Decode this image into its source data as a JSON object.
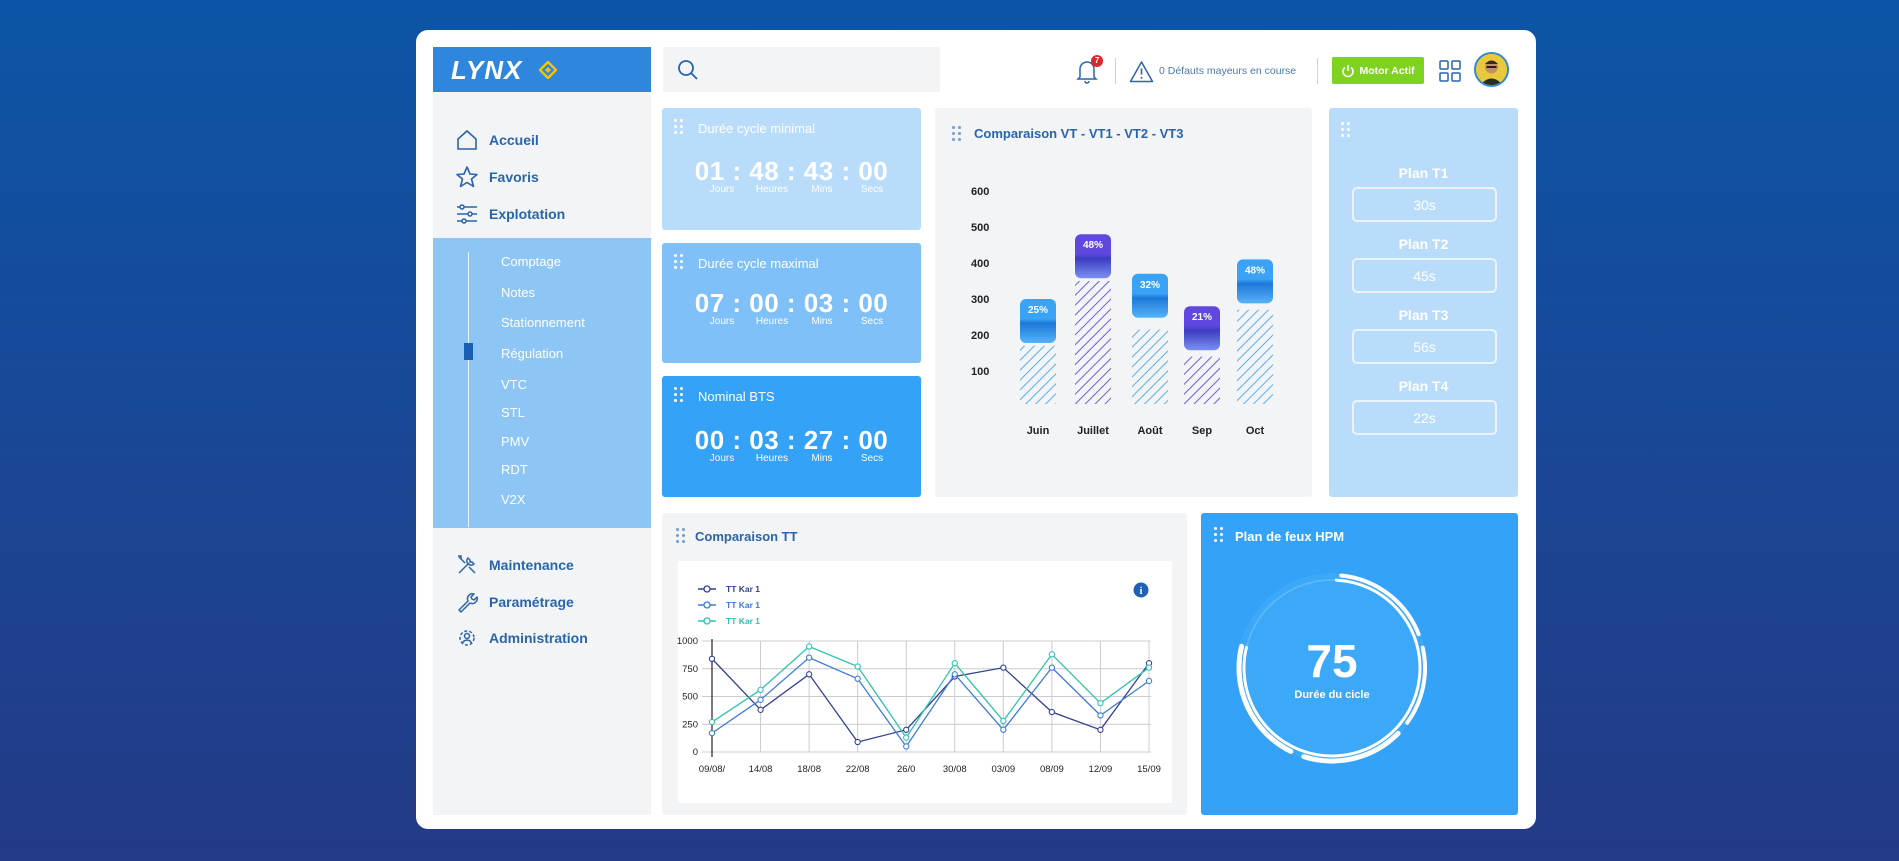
{
  "app": {
    "logo_text": "LYNX"
  },
  "sidebar": {
    "main_items": [
      {
        "label": "Accueil"
      },
      {
        "label": "Favoris"
      },
      {
        "label": "Explotation"
      }
    ],
    "sub_items": [
      {
        "label": "Comptage"
      },
      {
        "label": "Notes"
      },
      {
        "label": "Stationnement"
      },
      {
        "label": "Régulation"
      },
      {
        "label": "VTC"
      },
      {
        "label": "STL"
      },
      {
        "label": "PMV"
      },
      {
        "label": "RDT"
      },
      {
        "label": "V2X"
      }
    ],
    "bottom_items": [
      {
        "label": "Maintenance"
      },
      {
        "label": "Paramétrage"
      },
      {
        "label": "Administration"
      }
    ]
  },
  "header": {
    "notification_count": "7",
    "alert_text": "0 Défauts mayeurs en course",
    "motor_button": "Motor Actif"
  },
  "timers": [
    {
      "title": "Durée cycle minimal",
      "values": "01:48:43:00",
      "units": [
        "Jours",
        "Heures",
        "Mins",
        "Secs"
      ]
    },
    {
      "title": "Durée cycle maximal",
      "values": "07:00:03:00",
      "units": [
        "Jours",
        "Heures",
        "Mins",
        "Secs"
      ]
    },
    {
      "title": "Nominal BTS",
      "values": "00:03:27:00",
      "units": [
        "Jours",
        "Heures",
        "Mins",
        "Secs"
      ]
    }
  ],
  "plans": {
    "items": [
      {
        "label": "Plan T1",
        "value": "30s"
      },
      {
        "label": "Plan T2",
        "value": "45s"
      },
      {
        "label": "Plan T3",
        "value": "56s"
      },
      {
        "label": "Plan T4",
        "value": "22s"
      }
    ]
  },
  "gauge": {
    "title": "Plan de feux HPM",
    "value": "75",
    "label": "Durée du cicle",
    "fraction": 0.75
  },
  "colors": {
    "accent": "#2f87dd",
    "tile_light": "#b9dcfb",
    "tile_mid": "#7fc0f8",
    "tile_strong": "#33a2f7",
    "motor_green": "#7ed321",
    "purple": "#6c55e0",
    "teal": "#2fc2ae"
  },
  "chart_data": [
    {
      "type": "bar",
      "title": "Comparaison VT - VT1 - VT2 -  VT3",
      "categories": [
        "Juin",
        "Juillet",
        "Août",
        "Sep",
        "Oct"
      ],
      "values": [
        170,
        350,
        215,
        140,
        270
      ],
      "badge_values": [
        300,
        480,
        370,
        280,
        410
      ],
      "labels": [
        "25%",
        "48%",
        "32%",
        "21%",
        "48%"
      ],
      "y_ticks": [
        "600",
        "500",
        "400",
        "300",
        "200",
        "100"
      ],
      "ylim": [
        50,
        600
      ]
    },
    {
      "type": "line",
      "title": "Comparaison TT",
      "x": [
        "09/08/",
        "14/08",
        "18/08",
        "22/08",
        "26/0",
        "30/08",
        "03/09",
        "08/09",
        "12/09",
        "15/09"
      ],
      "y_ticks": [
        "1000",
        "750",
        "500",
        "250",
        "0"
      ],
      "ylim": [
        0,
        1000
      ],
      "legend": [
        "TT Kar 1",
        "TT Kar 1",
        "TT Kar 1"
      ],
      "series": [
        {
          "name": "TT Kar 1",
          "color": "#34418e",
          "values": [
            840,
            380,
            700,
            90,
            200,
            680,
            760,
            360,
            200,
            800
          ]
        },
        {
          "name": "TT Kar 1",
          "color": "#3d7bdb",
          "values": [
            170,
            470,
            850,
            660,
            50,
            700,
            200,
            760,
            330,
            640
          ]
        },
        {
          "name": "TT Kar 1",
          "color": "#2fc2ae",
          "values": [
            270,
            560,
            950,
            770,
            130,
            800,
            280,
            880,
            440,
            760
          ]
        }
      ]
    }
  ]
}
